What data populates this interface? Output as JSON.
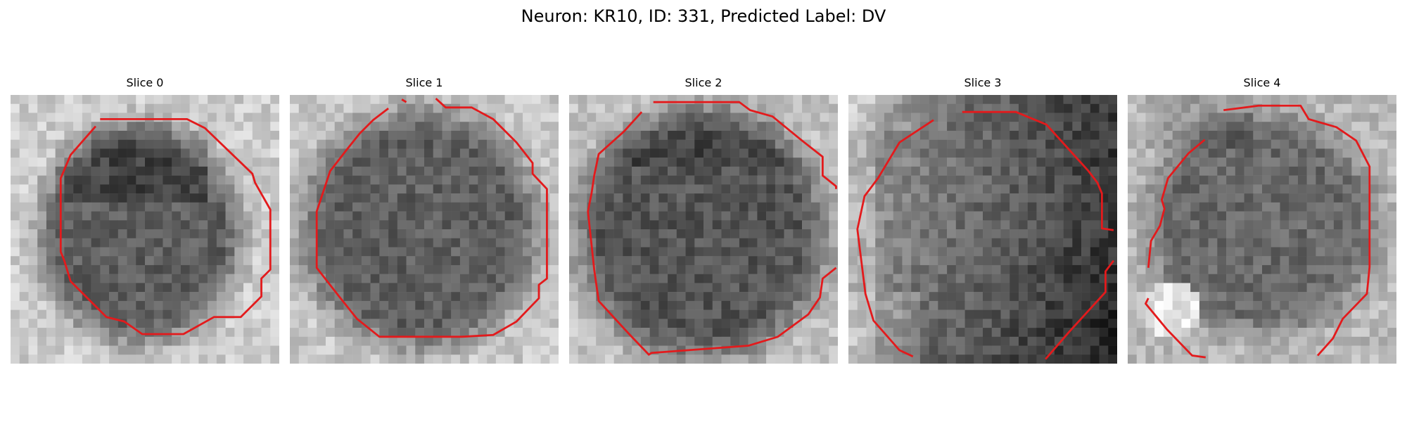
{
  "figure": {
    "title": "Neuron: KR10, ID: 331, Predicted Label: DV"
  },
  "slices": [
    {
      "title": "Slice 0",
      "icon": "grayscale-slice-with-red-contour",
      "contour_color": "#e31a1c"
    },
    {
      "title": "Slice 1",
      "icon": "grayscale-slice-with-red-contour",
      "contour_color": "#e31a1c"
    },
    {
      "title": "Slice 2",
      "icon": "grayscale-slice-with-red-contour",
      "contour_color": "#e31a1c"
    },
    {
      "title": "Slice 3",
      "icon": "grayscale-slice-with-red-contour",
      "contour_color": "#e31a1c"
    },
    {
      "title": "Slice 4",
      "icon": "grayscale-slice-with-red-contour",
      "contour_color": "#e31a1c"
    }
  ]
}
